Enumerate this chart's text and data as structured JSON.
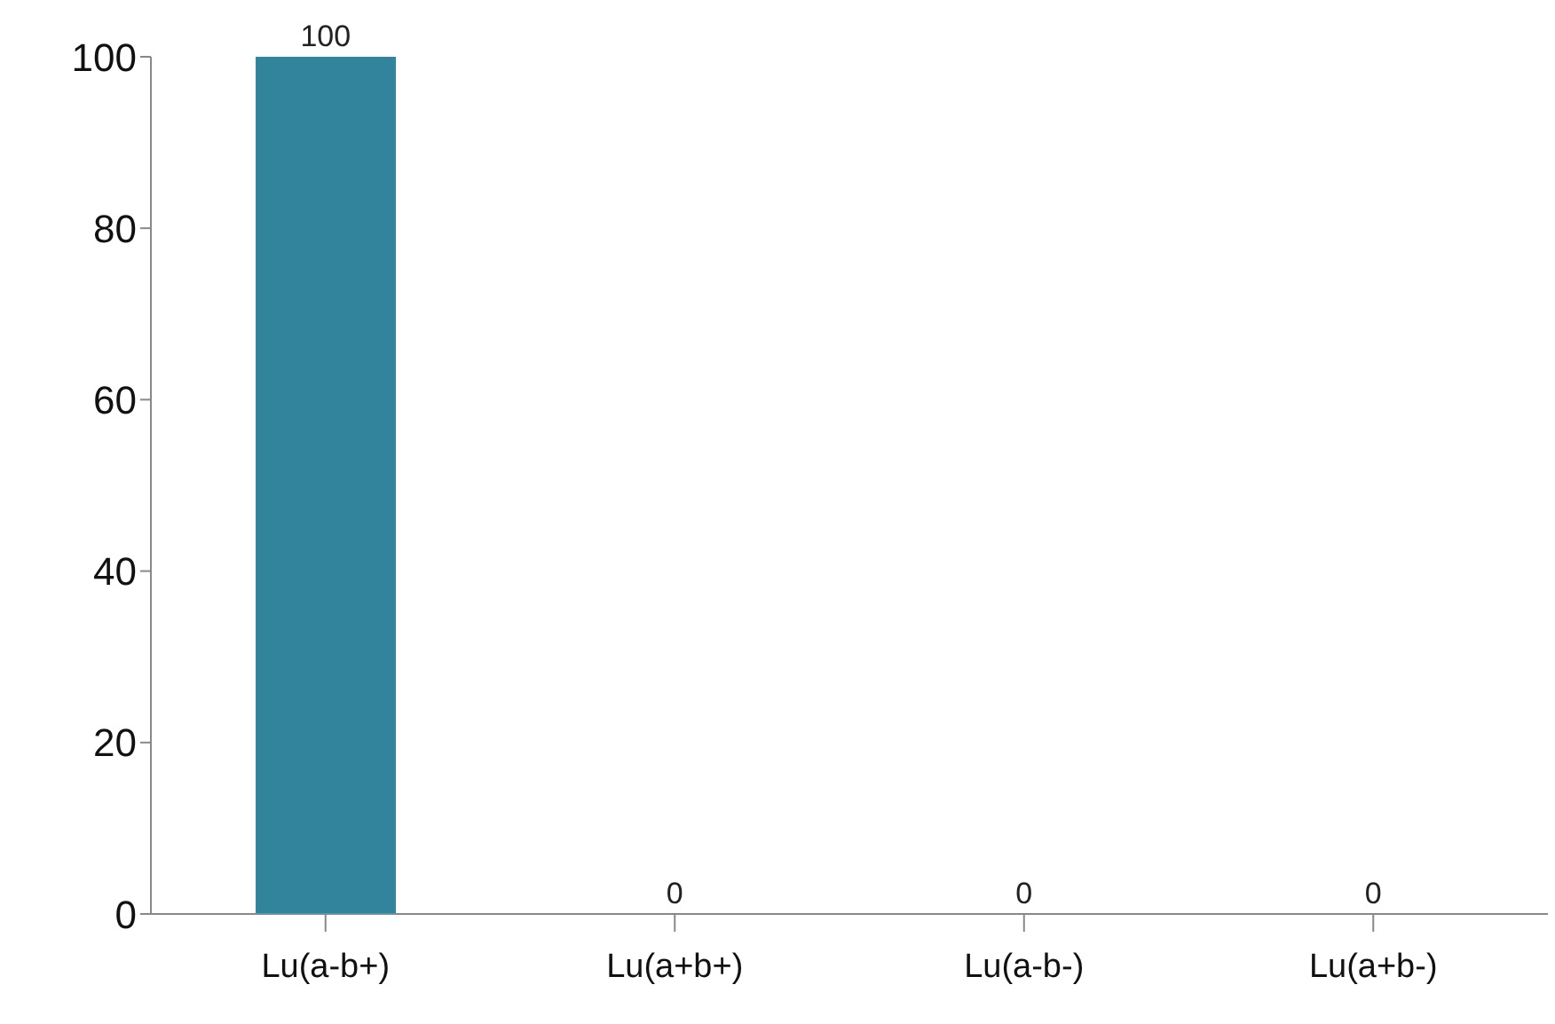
{
  "chart_data": {
    "type": "bar",
    "categories": [
      "Lu(a-b+)",
      "Lu(a+b+)",
      "Lu(a-b-)",
      "Lu(a+b-)"
    ],
    "values": [
      100,
      0,
      0,
      0
    ],
    "color": "#31849b",
    "ylim": [
      0,
      100
    ],
    "yticks": [
      0,
      20,
      40,
      60,
      80,
      100
    ],
    "grid": false,
    "legend": false,
    "data_labels": true
  }
}
